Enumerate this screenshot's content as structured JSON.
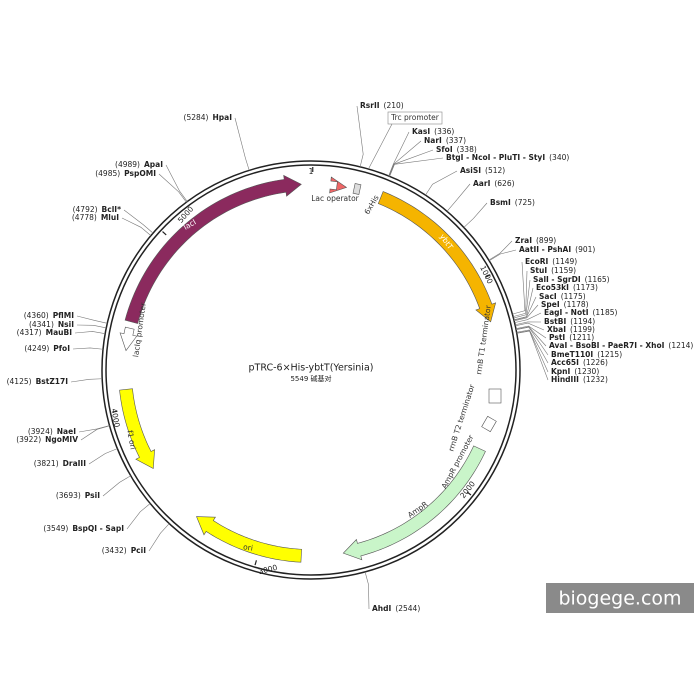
{
  "title": "pTRC-6×His-ybtT(Yersinia)",
  "size": "5549 碱基对",
  "watermark": "biogege.com",
  "ticks": [
    1,
    1000,
    2000,
    3000,
    4000,
    5000
  ],
  "features": [
    {
      "label": "lacI"
    },
    {
      "label": "ybtT"
    },
    {
      "label": "AmpR"
    },
    {
      "label": "ori"
    },
    {
      "label": "f1 ori"
    },
    {
      "label": "lacIq promoter"
    },
    {
      "label": "Lac operator"
    },
    {
      "label": "6xHis"
    },
    {
      "label": "Trc promoter"
    },
    {
      "label": "rrnB T1 terminator"
    },
    {
      "label": "rrnB T2 terminator"
    },
    {
      "label": "AmpR promoter"
    }
  ],
  "sites": [
    {
      "name": "RsrII",
      "position": "(210)"
    },
    {
      "name": "KasI",
      "position": "(336)"
    },
    {
      "name": "NarI",
      "position": "(337)"
    },
    {
      "name": "SfoI",
      "position": "(338)"
    },
    {
      "name": "BtgI - NcoI - PluTI - StyI",
      "position": "(340)"
    },
    {
      "name": "AsiSI",
      "position": "(512)"
    },
    {
      "name": "AarI",
      "position": "(626)"
    },
    {
      "name": "BsmI",
      "position": "(725)"
    },
    {
      "name": "ZraI",
      "position": "(899)"
    },
    {
      "name": "AatII - PshAI",
      "position": "(901)"
    },
    {
      "name": "EcoRI",
      "position": "(1149)"
    },
    {
      "name": "StuI",
      "position": "(1159)"
    },
    {
      "name": "SalI - SgrDI",
      "position": "(1165)"
    },
    {
      "name": "Eco53kI",
      "position": "(1173)"
    },
    {
      "name": "SacI",
      "position": "(1175)"
    },
    {
      "name": "SpeI",
      "position": "(1178)"
    },
    {
      "name": "EagI - NotI",
      "position": "(1185)"
    },
    {
      "name": "BstBI",
      "position": "(1194)"
    },
    {
      "name": "XbaI",
      "position": "(1199)"
    },
    {
      "name": "PstI",
      "position": "(1211)"
    },
    {
      "name": "AvaI - BsoBI - PaeR7I - XhoI",
      "position": "(1214)"
    },
    {
      "name": "BmeT110I",
      "position": "(1215)"
    },
    {
      "name": "Acc65I",
      "position": "(1226)"
    },
    {
      "name": "KpnI",
      "position": "(1230)"
    },
    {
      "name": "HindIII",
      "position": "(1232)"
    },
    {
      "name": "AhdI",
      "position": "(2544)"
    },
    {
      "name": "HpaI",
      "position": "(5284)"
    },
    {
      "name": "ApaI",
      "position": "(4989)"
    },
    {
      "name": "PspOMI",
      "position": "(4985)"
    },
    {
      "name": "BclI*",
      "position": "(4792)"
    },
    {
      "name": "MluI",
      "position": "(4778)"
    },
    {
      "name": "PflMI",
      "position": "(4360)"
    },
    {
      "name": "NsiI",
      "position": "(4341)"
    },
    {
      "name": "MauBI",
      "position": "(4317)"
    },
    {
      "name": "PfoI",
      "position": "(4249)"
    },
    {
      "name": "BstZ17I",
      "position": "(4125)"
    },
    {
      "name": "NaeI",
      "position": "(3924)"
    },
    {
      "name": "NgoMIV",
      "position": "(3922)"
    },
    {
      "name": "DraIII",
      "position": "(3821)"
    },
    {
      "name": "PsiI",
      "position": "(3693)"
    },
    {
      "name": "BspQI - SapI",
      "position": "(3549)"
    },
    {
      "name": "PciI",
      "position": "(3432)"
    }
  ]
}
